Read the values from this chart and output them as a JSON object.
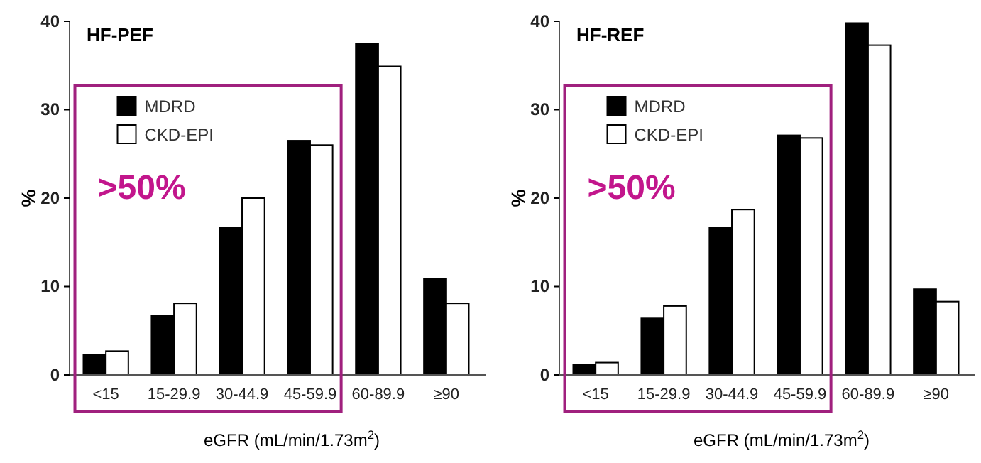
{
  "chart_data": [
    {
      "type": "bar",
      "title": "HF-PEF",
      "xlabel": "eGFR (mL/min/1.73m$^{2}$)",
      "ylabel": "%",
      "categories": [
        "<15",
        "15-29.9",
        "30-44.9",
        "45-59.9",
        "60-89.9",
        "≥90"
      ],
      "series": [
        {
          "name": "MDRD",
          "color": "#000000",
          "values": [
            2.3,
            6.7,
            16.7,
            26.5,
            37.5,
            10.9
          ]
        },
        {
          "name": "CKD-EPI",
          "color": "#ffffff",
          "values": [
            2.7,
            8.1,
            20.0,
            26.0,
            34.9,
            8.1
          ]
        }
      ],
      "ylim": [
        0,
        40
      ],
      "yticks": [
        0,
        10,
        20,
        30,
        40
      ],
      "grid": false,
      "legend": "top left",
      "annotations": [
        ">50%"
      ]
    },
    {
      "type": "bar",
      "title": "HF-REF",
      "xlabel": "eGFR (mL/min/1.73m$^{2}$)",
      "ylabel": "%",
      "categories": [
        "<15",
        "15-29.9",
        "30-44.9",
        "45-59.9",
        "60-89.9",
        "≥90"
      ],
      "series": [
        {
          "name": "MDRD",
          "color": "#000000",
          "values": [
            1.2,
            6.4,
            16.7,
            27.1,
            39.8,
            9.7
          ]
        },
        {
          "name": "CKD-EPI",
          "color": "#ffffff",
          "values": [
            1.4,
            7.8,
            18.7,
            26.8,
            37.3,
            8.3
          ]
        }
      ],
      "ylim": [
        0,
        40
      ],
      "yticks": [
        0,
        10,
        20,
        30,
        40
      ],
      "grid": false,
      "legend": "top left",
      "annotations": [
        ">50%"
      ]
    }
  ]
}
